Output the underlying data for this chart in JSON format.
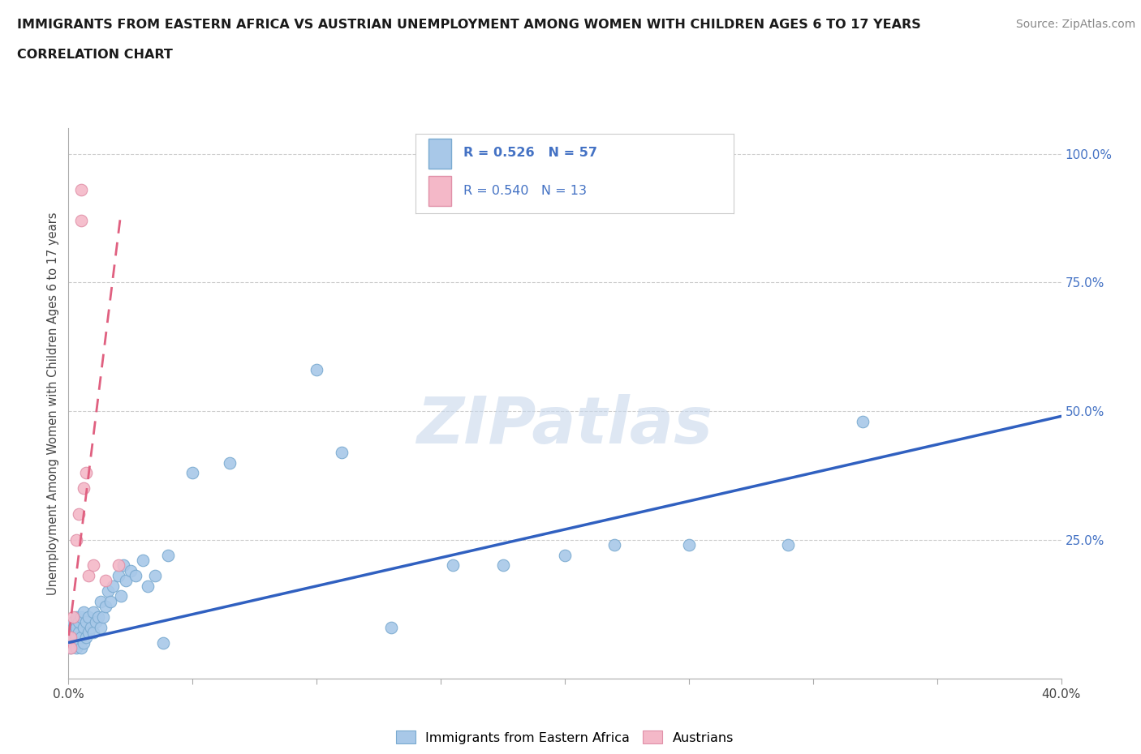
{
  "title_line1": "IMMIGRANTS FROM EASTERN AFRICA VS AUSTRIAN UNEMPLOYMENT AMONG WOMEN WITH CHILDREN AGES 6 TO 17 YEARS",
  "title_line2": "CORRELATION CHART",
  "source_text": "Source: ZipAtlas.com",
  "ylabel": "Unemployment Among Women with Children Ages 6 to 17 years",
  "xlim": [
    0.0,
    0.4
  ],
  "ylim": [
    -0.02,
    1.05
  ],
  "xticks": [
    0.0,
    0.05,
    0.1,
    0.15,
    0.2,
    0.25,
    0.3,
    0.35,
    0.4
  ],
  "xticklabels": [
    "0.0%",
    "",
    "",
    "",
    "",
    "",
    "",
    "",
    "40.0%"
  ],
  "ytick_positions": [
    0.25,
    0.5,
    0.75,
    1.0
  ],
  "ytick_labels": [
    "25.0%",
    "50.0%",
    "75.0%",
    "100.0%"
  ],
  "grid_color": "#cccccc",
  "background_color": "#ffffff",
  "blue_color": "#a8c8e8",
  "pink_color": "#f4b8c8",
  "blue_edge": "#7aaad0",
  "pink_edge": "#e090a8",
  "trend_blue_color": "#3060c0",
  "trend_pink_color": "#e06080",
  "label_color": "#4472c4",
  "R_blue": 0.526,
  "N_blue": 57,
  "R_pink": 0.54,
  "N_pink": 13,
  "watermark": "ZIPatlas",
  "watermark_color": "#c8d8ec",
  "blue_scatter_x": [
    0.001,
    0.001,
    0.002,
    0.002,
    0.002,
    0.003,
    0.003,
    0.003,
    0.003,
    0.004,
    0.004,
    0.004,
    0.005,
    0.005,
    0.005,
    0.006,
    0.006,
    0.006,
    0.007,
    0.007,
    0.008,
    0.008,
    0.009,
    0.01,
    0.01,
    0.011,
    0.012,
    0.013,
    0.013,
    0.014,
    0.015,
    0.016,
    0.017,
    0.018,
    0.02,
    0.021,
    0.022,
    0.023,
    0.025,
    0.027,
    0.03,
    0.032,
    0.035,
    0.038,
    0.04,
    0.05,
    0.065,
    0.1,
    0.11,
    0.13,
    0.155,
    0.175,
    0.2,
    0.22,
    0.25,
    0.29,
    0.32
  ],
  "blue_scatter_y": [
    0.04,
    0.06,
    0.05,
    0.07,
    0.09,
    0.04,
    0.06,
    0.08,
    0.1,
    0.05,
    0.07,
    0.09,
    0.04,
    0.06,
    0.1,
    0.05,
    0.08,
    0.11,
    0.06,
    0.09,
    0.07,
    0.1,
    0.08,
    0.07,
    0.11,
    0.09,
    0.1,
    0.08,
    0.13,
    0.1,
    0.12,
    0.15,
    0.13,
    0.16,
    0.18,
    0.14,
    0.2,
    0.17,
    0.19,
    0.18,
    0.21,
    0.16,
    0.18,
    0.05,
    0.22,
    0.38,
    0.4,
    0.58,
    0.42,
    0.08,
    0.2,
    0.2,
    0.22,
    0.24,
    0.24,
    0.24,
    0.48
  ],
  "pink_scatter_x": [
    0.001,
    0.001,
    0.002,
    0.003,
    0.004,
    0.005,
    0.005,
    0.006,
    0.007,
    0.008,
    0.01,
    0.015,
    0.02
  ],
  "pink_scatter_y": [
    0.04,
    0.06,
    0.1,
    0.25,
    0.3,
    0.87,
    0.93,
    0.35,
    0.38,
    0.18,
    0.2,
    0.17,
    0.2
  ],
  "blue_trendline_x": [
    0.0,
    0.4
  ],
  "blue_trendline_y": [
    0.05,
    0.49
  ],
  "pink_trendline_x": [
    -0.001,
    0.021
  ],
  "pink_trendline_y": [
    0.02,
    0.88
  ]
}
